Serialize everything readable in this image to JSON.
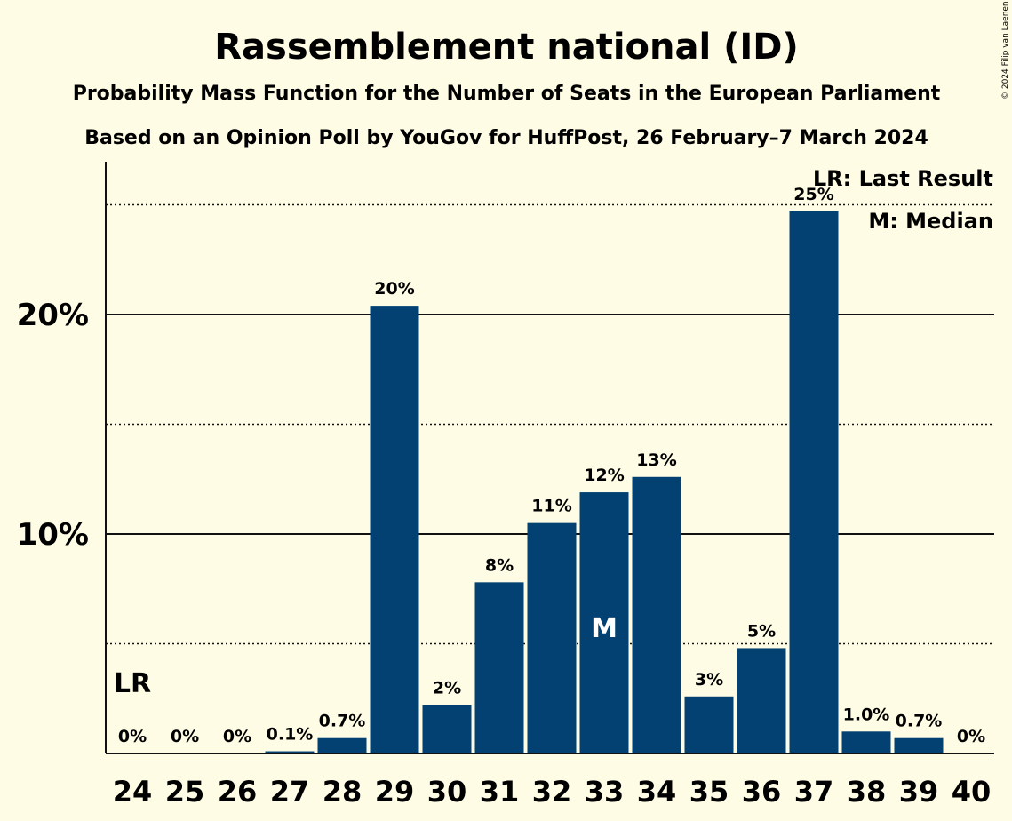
{
  "title": "Rassemblement national (ID)",
  "subtitle1": "Probability Mass Function for the Number of Seats in the European Parliament",
  "subtitle2": "Based on an Opinion Poll by YouGov for HuffPost, 26 February–7 March 2024",
  "copyright": "© 2024 Filip van Laenen",
  "legend": {
    "last_result": "LR: Last Result",
    "median": "M: Median"
  },
  "markers": {
    "last_result_label": "LR",
    "median_label": "M"
  },
  "colors": {
    "bar": "#024172",
    "background": "#FFFCE5"
  },
  "chart_data": {
    "type": "bar",
    "categories": [
      "24",
      "25",
      "26",
      "27",
      "28",
      "29",
      "30",
      "31",
      "32",
      "33",
      "34",
      "35",
      "36",
      "37",
      "38",
      "39",
      "40"
    ],
    "values": [
      0,
      0,
      0,
      0.1,
      0.7,
      20.4,
      2.2,
      7.8,
      10.5,
      11.9,
      12.6,
      2.6,
      4.8,
      24.7,
      1.0,
      0.7,
      0
    ],
    "value_labels": [
      "0%",
      "0%",
      "0%",
      "0.1%",
      "0.7%",
      "20%",
      "2%",
      "8%",
      "11%",
      "12%",
      "13%",
      "3%",
      "5%",
      "25%",
      "1.0%",
      "0.7%",
      "0%"
    ],
    "ylim": [
      0,
      27
    ],
    "yticks": [
      {
        "value": 10,
        "label": "10%"
      },
      {
        "value": 20,
        "label": "20%"
      }
    ],
    "minor_gridlines": [
      5,
      15,
      25
    ],
    "last_result": "24",
    "median": "33",
    "legend_position": "top-right"
  }
}
